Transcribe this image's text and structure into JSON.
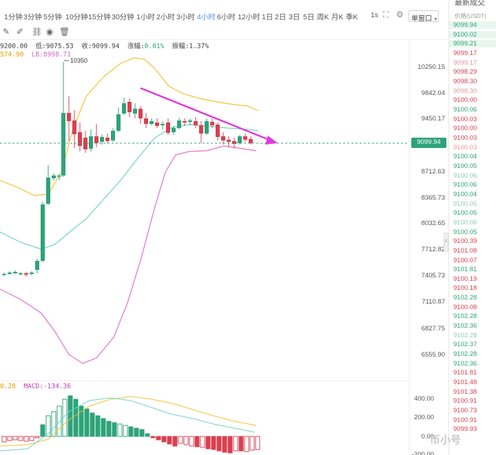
{
  "toolbar": {
    "intervals": [
      "1分钟",
      "3分钟",
      "5分钟",
      "10分钟",
      "15分钟",
      "30分钟",
      "1小时",
      "2小时",
      "3小时",
      "4小时",
      "6小时",
      "12小时",
      "1日",
      "2日",
      "3日",
      "5日",
      "周K",
      "月K",
      "季K"
    ],
    "active_interval": "4小时",
    "sec_label": "1s",
    "window_select": "单窗口"
  },
  "ohlc": {
    "high_label": "9200.00",
    "low_label": "低:9075.53",
    "close_label": "收:9099.94",
    "change_prefix": "涨幅:",
    "change_value": "0.01%",
    "amp_prefix": "振幅:",
    "amp_value": "1.37%"
  },
  "boll": {
    "ub_label": "574.90",
    "lb_label": "LB:8998.71"
  },
  "macd_label": {
    "dea": "0.28",
    "macd": "MACD:-134.36"
  },
  "high_marker": "10350",
  "current_price": "9099.94",
  "price_ticks": [
    "10250.15",
    "9842.04",
    "9450.17",
    "8712.63",
    "8365.73",
    "8032.65",
    "7712.82",
    "7405.73",
    "7110.87",
    "6827.75",
    "6555.90"
  ],
  "macd_ticks": [
    "400.00",
    "200.00",
    "0.00",
    "-200.00"
  ],
  "sidebar": {
    "title": "最新成交",
    "header": "价格(USDT)",
    "rows": [
      {
        "v": "9099.94",
        "c": "up",
        "hl": true
      },
      {
        "v": "9100.02",
        "c": "up",
        "hl": true
      },
      {
        "v": "9099.21",
        "c": "up",
        "hl": true
      },
      {
        "v": "9099.17",
        "c": "down",
        "faded": false
      },
      {
        "v": "9099.17",
        "c": "down",
        "faded": true
      },
      {
        "v": "9098.29",
        "c": "down",
        "faded": false
      },
      {
        "v": "9098.30",
        "c": "down",
        "faded": false
      },
      {
        "v": "9098.30",
        "c": "down",
        "faded": true
      },
      {
        "v": "9100.00",
        "c": "down",
        "faded": false
      },
      {
        "v": "9100.06",
        "c": "up",
        "faded": false
      },
      {
        "v": "9100.03",
        "c": "down",
        "faded": false
      },
      {
        "v": "9100.00",
        "c": "down",
        "faded": false
      },
      {
        "v": "9100.03",
        "c": "down",
        "faded": false
      },
      {
        "v": "9100.03",
        "c": "down",
        "faded": true
      },
      {
        "v": "9100.04",
        "c": "up",
        "faded": false
      },
      {
        "v": "9100.05",
        "c": "up",
        "faded": false
      },
      {
        "v": "9100.06",
        "c": "up",
        "faded": true
      },
      {
        "v": "9100.06",
        "c": "up",
        "faded": false
      },
      {
        "v": "9100.04",
        "c": "up",
        "faded": false
      },
      {
        "v": "9100.05",
        "c": "up",
        "faded": true
      },
      {
        "v": "9100.05",
        "c": "up",
        "faded": false
      },
      {
        "v": "9100.06",
        "c": "up",
        "faded": true
      },
      {
        "v": "9100.05",
        "c": "up",
        "faded": false
      },
      {
        "v": "9100.39",
        "c": "down",
        "faded": false
      },
      {
        "v": "9101.08",
        "c": "down",
        "faded": false
      },
      {
        "v": "9100.07",
        "c": "down",
        "faded": false
      },
      {
        "v": "9101.81",
        "c": "up",
        "faded": false
      },
      {
        "v": "9100.19",
        "c": "down",
        "faded": false
      },
      {
        "v": "9100.18",
        "c": "down",
        "faded": false
      },
      {
        "v": "9102.28",
        "c": "up",
        "faded": false
      },
      {
        "v": "9100.08",
        "c": "down",
        "faded": false
      },
      {
        "v": "9102.28",
        "c": "up",
        "faded": false
      },
      {
        "v": "9102.36",
        "c": "up",
        "faded": false
      },
      {
        "v": "9102.28",
        "c": "up",
        "faded": true
      },
      {
        "v": "9102.37",
        "c": "up",
        "faded": false
      },
      {
        "v": "9102.28",
        "c": "up",
        "faded": false
      },
      {
        "v": "9102.36",
        "c": "up",
        "faded": false
      },
      {
        "v": "9101.81",
        "c": "down",
        "faded": false
      },
      {
        "v": "9101.48",
        "c": "down",
        "faded": false
      },
      {
        "v": "9101.38",
        "c": "down",
        "faded": false
      },
      {
        "v": "9100.91",
        "c": "down",
        "faded": false
      },
      {
        "v": "9100.73",
        "c": "down",
        "faded": false
      },
      {
        "v": "9100.91",
        "c": "down",
        "faded": false
      },
      {
        "v": "9099.93",
        "c": "down",
        "faded": false
      }
    ]
  },
  "colors": {
    "up": "#2ea37a",
    "down": "#d94050",
    "mid": "#6ed4c4",
    "ub": "#f2c230",
    "lb": "#e070c8",
    "arrow": "#e33ad8"
  },
  "watermark": "币小号"
}
